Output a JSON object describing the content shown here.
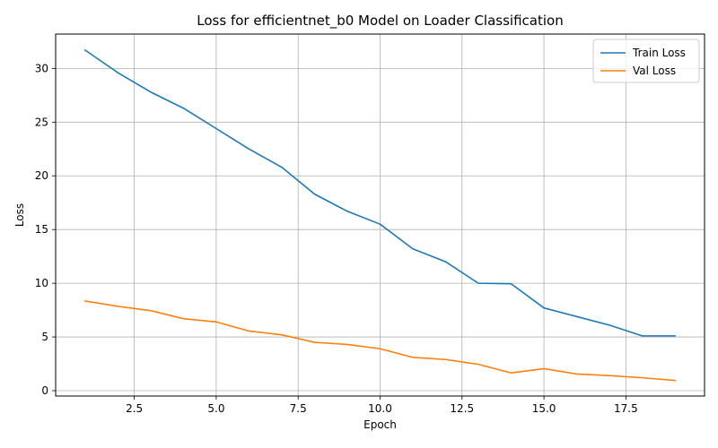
{
  "chart_data": {
    "type": "line",
    "title": "Loss for efficientnet_b0 Model on Loader Classification",
    "xlabel": "Epoch",
    "ylabel": "Loss",
    "xlim": [
      0.1,
      19.9
    ],
    "ylim": [
      -0.5,
      33.2
    ],
    "x_ticks": [
      2.5,
      5.0,
      7.5,
      10.0,
      12.5,
      15.0,
      17.5
    ],
    "x_tick_labels": [
      "2.5",
      "5.0",
      "7.5",
      "10.0",
      "12.5",
      "15.0",
      "17.5"
    ],
    "y_ticks": [
      0,
      5,
      10,
      15,
      20,
      25,
      30
    ],
    "y_tick_labels": [
      "0",
      "5",
      "10",
      "15",
      "20",
      "25",
      "30"
    ],
    "grid": true,
    "legend_position": "top-right",
    "x": [
      1,
      2,
      3,
      4,
      5,
      6,
      7,
      8,
      9,
      10,
      11,
      12,
      13,
      14,
      15,
      16,
      17,
      18,
      19
    ],
    "series": [
      {
        "name": "Train Loss",
        "color": "#1f77b4",
        "values": [
          31.7,
          29.6,
          27.8,
          26.3,
          24.4,
          22.5,
          20.8,
          18.3,
          16.7,
          15.5,
          13.2,
          12.0,
          10.0,
          9.95,
          7.7,
          6.9,
          6.1,
          5.1,
          5.1
        ]
      },
      {
        "name": "Val Loss",
        "color": "#ff7f0e",
        "values": [
          8.35,
          7.85,
          7.45,
          6.7,
          6.4,
          5.55,
          5.2,
          4.5,
          4.3,
          3.9,
          3.1,
          2.9,
          2.45,
          1.65,
          2.05,
          1.55,
          1.4,
          1.2,
          0.95
        ]
      }
    ]
  }
}
